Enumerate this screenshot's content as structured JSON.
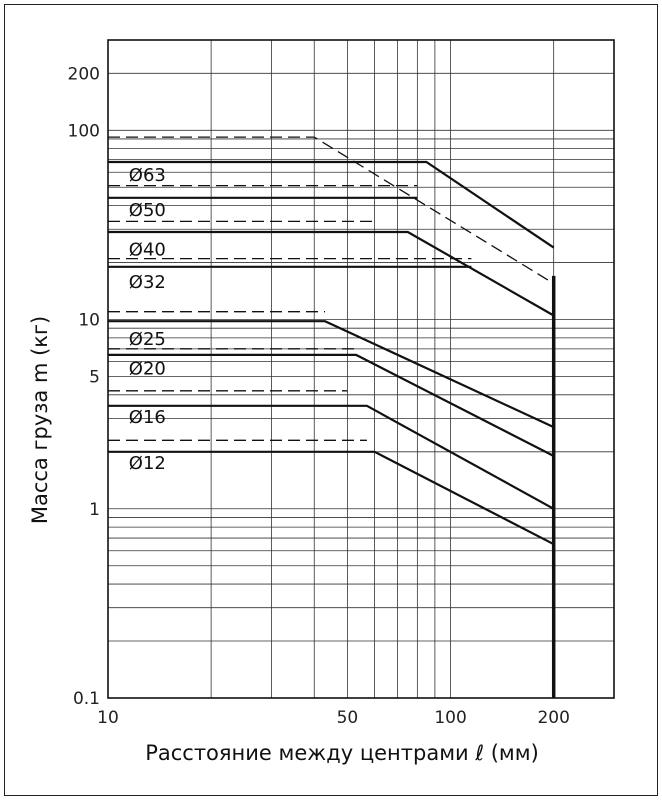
{
  "chart_data": {
    "type": "line",
    "xscale": "log",
    "yscale": "log",
    "xlim": [
      10,
      300
    ],
    "ylim": [
      0.1,
      300
    ],
    "xlabel": "Расстояние между центрами ℓ (мм)",
    "ylabel": "Масса груза m (кг)",
    "x_ticks": [
      10,
      50,
      100,
      200
    ],
    "x_tick_labels": [
      "10",
      "50",
      "100",
      "200"
    ],
    "y_ticks": [
      0.1,
      1,
      5,
      10,
      100,
      200
    ],
    "y_tick_labels": [
      "0.1",
      "1",
      "5",
      "10",
      "100",
      "200"
    ],
    "grid": true,
    "series": [
      {
        "name": "Ø63",
        "style": "solid",
        "points": [
          [
            10,
            68
          ],
          [
            85,
            68
          ],
          [
            200,
            24
          ]
        ]
      },
      {
        "name": "Ø63",
        "style": "dashed",
        "points": [
          [
            10,
            92
          ],
          [
            40,
            92
          ],
          [
            200,
            15.5
          ]
        ]
      },
      {
        "name": "Ø50",
        "style": "solid",
        "points": [
          [
            10,
            44
          ],
          [
            80,
            44
          ]
        ]
      },
      {
        "name": "Ø50",
        "style": "dashed",
        "points": [
          [
            10,
            51
          ],
          [
            80,
            51
          ]
        ]
      },
      {
        "name": "Ø40",
        "style": "solid",
        "points": [
          [
            10,
            29
          ],
          [
            75,
            29
          ],
          [
            200,
            10.5
          ]
        ]
      },
      {
        "name": "Ø40",
        "style": "dashed",
        "points": [
          [
            10,
            33
          ],
          [
            60,
            33
          ]
        ]
      },
      {
        "name": "Ø32",
        "style": "solid",
        "points": [
          [
            10,
            19
          ],
          [
            115,
            19
          ]
        ]
      },
      {
        "name": "Ø32",
        "style": "dashed",
        "points": [
          [
            10,
            21
          ],
          [
            115,
            21
          ]
        ]
      },
      {
        "name": "Ø25",
        "style": "solid",
        "points": [
          [
            10,
            9.8
          ],
          [
            43,
            9.8
          ],
          [
            200,
            2.7
          ]
        ]
      },
      {
        "name": "Ø25",
        "style": "dashed",
        "points": [
          [
            10,
            11
          ],
          [
            43,
            11
          ]
        ]
      },
      {
        "name": "Ø20",
        "style": "solid",
        "points": [
          [
            10,
            6.5
          ],
          [
            53,
            6.5
          ],
          [
            200,
            1.9
          ]
        ]
      },
      {
        "name": "Ø20",
        "style": "dashed",
        "points": [
          [
            10,
            7
          ],
          [
            53,
            7
          ]
        ]
      },
      {
        "name": "Ø16",
        "style": "solid",
        "points": [
          [
            10,
            3.5
          ],
          [
            57,
            3.5
          ],
          [
            200,
            1.0
          ]
        ]
      },
      {
        "name": "Ø16",
        "style": "dashed",
        "points": [
          [
            10,
            4.2
          ],
          [
            50,
            4.2
          ]
        ]
      },
      {
        "name": "Ø12",
        "style": "solid",
        "points": [
          [
            10,
            2.0
          ],
          [
            60,
            2.0
          ],
          [
            200,
            0.65
          ]
        ]
      },
      {
        "name": "Ø12",
        "style": "dashed",
        "points": [
          [
            10,
            2.3
          ],
          [
            57,
            2.3
          ]
        ]
      },
      {
        "name": "",
        "style": "solid",
        "points": [
          [
            200,
            0.1
          ],
          [
            200,
            17
          ]
        ]
      }
    ],
    "series_labels": [
      {
        "text": "Ø63",
        "x": 11.5,
        "y": 58
      },
      {
        "text": "Ø50",
        "x": 11.5,
        "y": 38
      },
      {
        "text": "Ø40",
        "x": 11.5,
        "y": 23.5
      },
      {
        "text": "Ø32",
        "x": 11.5,
        "y": 15.8
      },
      {
        "text": "Ø25",
        "x": 11.5,
        "y": 7.9
      },
      {
        "text": "Ø20",
        "x": 11.5,
        "y": 5.5
      },
      {
        "text": "Ø16",
        "x": 11.5,
        "y": 3.05
      },
      {
        "text": "Ø12",
        "x": 11.5,
        "y": 1.75
      }
    ]
  }
}
